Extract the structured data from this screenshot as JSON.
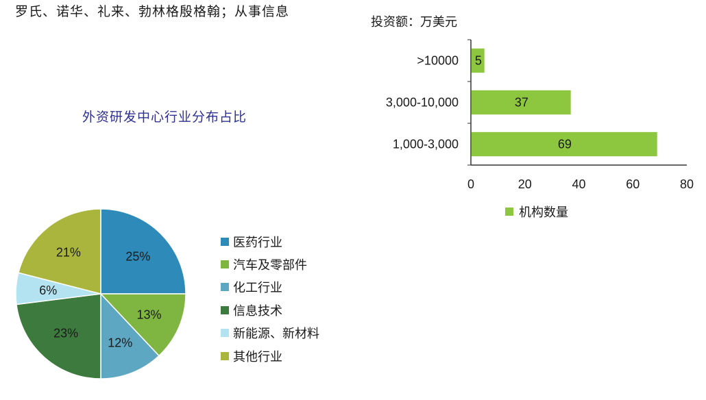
{
  "header": {
    "text": "罗氏、诺华、礼来、勃林格殷格翰；从事信息"
  },
  "chart_data": [
    {
      "type": "pie",
      "title": "外资研发中心行业分布占比",
      "slices": [
        {
          "label": "医药行业",
          "value": 25,
          "color": "#2e8ab8"
        },
        {
          "label": "汽车及零部件",
          "value": 13,
          "color": "#7fb641"
        },
        {
          "label": "化工行业",
          "value": 12,
          "color": "#5ea7c3"
        },
        {
          "label": "信息技术",
          "value": 23,
          "color": "#3c7a3e"
        },
        {
          "label": "新能源、新材料",
          "value": 6,
          "color": "#b3e3f1"
        },
        {
          "label": "其他行业",
          "value": 21,
          "color": "#a9b53c"
        }
      ],
      "value_labels": [
        "25%",
        "13%",
        "12%",
        "23%",
        "6%",
        "21%"
      ],
      "legend_position": "right"
    },
    {
      "type": "bar",
      "orientation": "horizontal",
      "title": "投资额：万美元",
      "categories": [
        ">10000",
        "3,000-10,000",
        "1,000-3,000"
      ],
      "series": [
        {
          "name": "机构数量",
          "values": [
            5,
            37,
            69
          ],
          "color": "#8dc63f"
        }
      ],
      "xlim": [
        0,
        80
      ],
      "xticks": [
        "0",
        "20",
        "40",
        "60",
        "80"
      ],
      "legend_position": "bottom",
      "grid": false
    }
  ]
}
